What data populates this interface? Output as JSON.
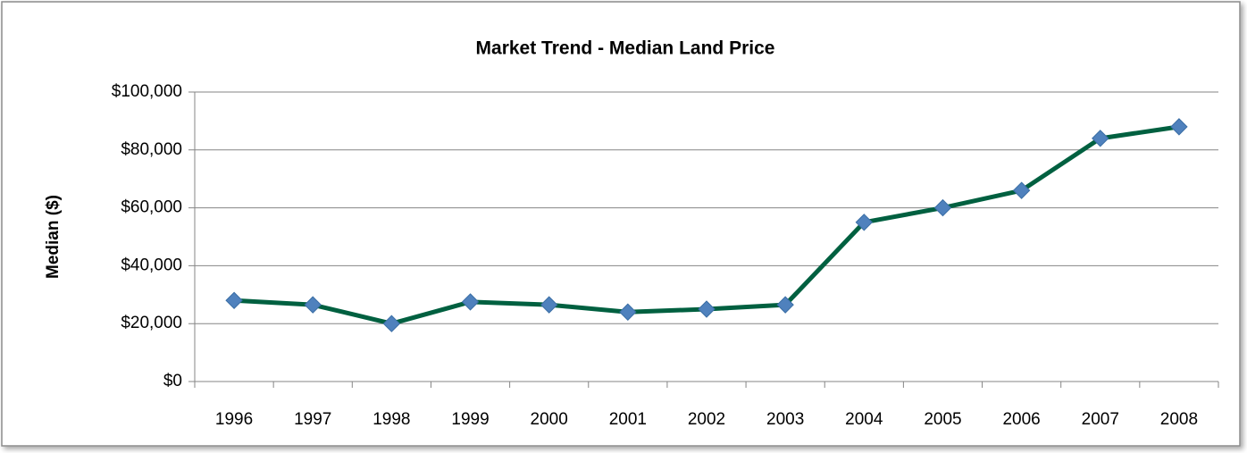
{
  "chart_data": {
    "type": "line",
    "title": "Market Trend - Median  Land Price",
    "y_label": "Median ($)",
    "categories": [
      "1996",
      "1997",
      "1998",
      "1999",
      "2000",
      "2001",
      "2002",
      "2003",
      "2004",
      "2005",
      "2006",
      "2007",
      "2008"
    ],
    "series": [
      {
        "color": "#006040",
        "marker_color": "#4f81bd",
        "values": [
          28000,
          26500,
          20000,
          27500,
          26500,
          24000,
          25000,
          26500,
          55000,
          60000,
          66000,
          84000,
          88000
        ]
      }
    ],
    "ylim": [
      0,
      100000
    ],
    "yticks": [
      {
        "value": 0,
        "label": "$0"
      },
      {
        "value": 20000,
        "label": "$20,000"
      },
      {
        "value": 40000,
        "label": "$40,000"
      },
      {
        "value": 60000,
        "label": "$60,000"
      },
      {
        "value": 80000,
        "label": "$80,000"
      },
      {
        "value": 100000,
        "label": "$100,000"
      }
    ],
    "grid": true
  }
}
